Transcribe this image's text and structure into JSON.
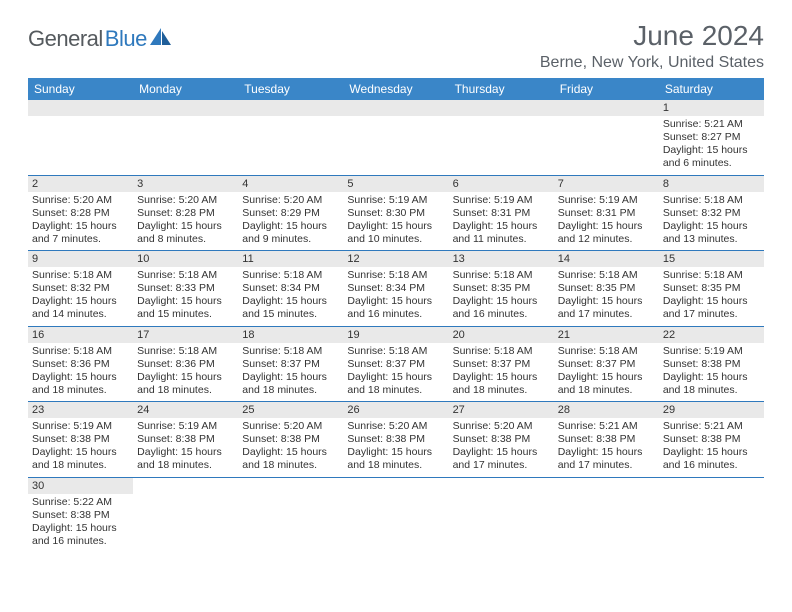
{
  "logo": {
    "general": "General",
    "blue": "Blue"
  },
  "title": "June 2024",
  "location": "Berne, New York, United States",
  "colors": {
    "header_bg": "#3a86c8",
    "header_text": "#ffffff",
    "daynum_bg": "#e9e9e9",
    "cell_border": "#2f79bd",
    "title_color": "#5b6168",
    "logo_gray": "#555a5e",
    "logo_blue": "#2f79bd",
    "page_bg": "#ffffff",
    "text_color": "#333333"
  },
  "weekdays": [
    "Sunday",
    "Monday",
    "Tuesday",
    "Wednesday",
    "Thursday",
    "Friday",
    "Saturday"
  ],
  "weeks": [
    [
      null,
      null,
      null,
      null,
      null,
      null,
      {
        "n": "1",
        "sr": "Sunrise: 5:21 AM",
        "ss": "Sunset: 8:27 PM",
        "d1": "Daylight: 15 hours",
        "d2": "and 6 minutes."
      }
    ],
    [
      {
        "n": "2",
        "sr": "Sunrise: 5:20 AM",
        "ss": "Sunset: 8:28 PM",
        "d1": "Daylight: 15 hours",
        "d2": "and 7 minutes."
      },
      {
        "n": "3",
        "sr": "Sunrise: 5:20 AM",
        "ss": "Sunset: 8:28 PM",
        "d1": "Daylight: 15 hours",
        "d2": "and 8 minutes."
      },
      {
        "n": "4",
        "sr": "Sunrise: 5:20 AM",
        "ss": "Sunset: 8:29 PM",
        "d1": "Daylight: 15 hours",
        "d2": "and 9 minutes."
      },
      {
        "n": "5",
        "sr": "Sunrise: 5:19 AM",
        "ss": "Sunset: 8:30 PM",
        "d1": "Daylight: 15 hours",
        "d2": "and 10 minutes."
      },
      {
        "n": "6",
        "sr": "Sunrise: 5:19 AM",
        "ss": "Sunset: 8:31 PM",
        "d1": "Daylight: 15 hours",
        "d2": "and 11 minutes."
      },
      {
        "n": "7",
        "sr": "Sunrise: 5:19 AM",
        "ss": "Sunset: 8:31 PM",
        "d1": "Daylight: 15 hours",
        "d2": "and 12 minutes."
      },
      {
        "n": "8",
        "sr": "Sunrise: 5:18 AM",
        "ss": "Sunset: 8:32 PM",
        "d1": "Daylight: 15 hours",
        "d2": "and 13 minutes."
      }
    ],
    [
      {
        "n": "9",
        "sr": "Sunrise: 5:18 AM",
        "ss": "Sunset: 8:32 PM",
        "d1": "Daylight: 15 hours",
        "d2": "and 14 minutes."
      },
      {
        "n": "10",
        "sr": "Sunrise: 5:18 AM",
        "ss": "Sunset: 8:33 PM",
        "d1": "Daylight: 15 hours",
        "d2": "and 15 minutes."
      },
      {
        "n": "11",
        "sr": "Sunrise: 5:18 AM",
        "ss": "Sunset: 8:34 PM",
        "d1": "Daylight: 15 hours",
        "d2": "and 15 minutes."
      },
      {
        "n": "12",
        "sr": "Sunrise: 5:18 AM",
        "ss": "Sunset: 8:34 PM",
        "d1": "Daylight: 15 hours",
        "d2": "and 16 minutes."
      },
      {
        "n": "13",
        "sr": "Sunrise: 5:18 AM",
        "ss": "Sunset: 8:35 PM",
        "d1": "Daylight: 15 hours",
        "d2": "and 16 minutes."
      },
      {
        "n": "14",
        "sr": "Sunrise: 5:18 AM",
        "ss": "Sunset: 8:35 PM",
        "d1": "Daylight: 15 hours",
        "d2": "and 17 minutes."
      },
      {
        "n": "15",
        "sr": "Sunrise: 5:18 AM",
        "ss": "Sunset: 8:35 PM",
        "d1": "Daylight: 15 hours",
        "d2": "and 17 minutes."
      }
    ],
    [
      {
        "n": "16",
        "sr": "Sunrise: 5:18 AM",
        "ss": "Sunset: 8:36 PM",
        "d1": "Daylight: 15 hours",
        "d2": "and 18 minutes."
      },
      {
        "n": "17",
        "sr": "Sunrise: 5:18 AM",
        "ss": "Sunset: 8:36 PM",
        "d1": "Daylight: 15 hours",
        "d2": "and 18 minutes."
      },
      {
        "n": "18",
        "sr": "Sunrise: 5:18 AM",
        "ss": "Sunset: 8:37 PM",
        "d1": "Daylight: 15 hours",
        "d2": "and 18 minutes."
      },
      {
        "n": "19",
        "sr": "Sunrise: 5:18 AM",
        "ss": "Sunset: 8:37 PM",
        "d1": "Daylight: 15 hours",
        "d2": "and 18 minutes."
      },
      {
        "n": "20",
        "sr": "Sunrise: 5:18 AM",
        "ss": "Sunset: 8:37 PM",
        "d1": "Daylight: 15 hours",
        "d2": "and 18 minutes."
      },
      {
        "n": "21",
        "sr": "Sunrise: 5:18 AM",
        "ss": "Sunset: 8:37 PM",
        "d1": "Daylight: 15 hours",
        "d2": "and 18 minutes."
      },
      {
        "n": "22",
        "sr": "Sunrise: 5:19 AM",
        "ss": "Sunset: 8:38 PM",
        "d1": "Daylight: 15 hours",
        "d2": "and 18 minutes."
      }
    ],
    [
      {
        "n": "23",
        "sr": "Sunrise: 5:19 AM",
        "ss": "Sunset: 8:38 PM",
        "d1": "Daylight: 15 hours",
        "d2": "and 18 minutes."
      },
      {
        "n": "24",
        "sr": "Sunrise: 5:19 AM",
        "ss": "Sunset: 8:38 PM",
        "d1": "Daylight: 15 hours",
        "d2": "and 18 minutes."
      },
      {
        "n": "25",
        "sr": "Sunrise: 5:20 AM",
        "ss": "Sunset: 8:38 PM",
        "d1": "Daylight: 15 hours",
        "d2": "and 18 minutes."
      },
      {
        "n": "26",
        "sr": "Sunrise: 5:20 AM",
        "ss": "Sunset: 8:38 PM",
        "d1": "Daylight: 15 hours",
        "d2": "and 18 minutes."
      },
      {
        "n": "27",
        "sr": "Sunrise: 5:20 AM",
        "ss": "Sunset: 8:38 PM",
        "d1": "Daylight: 15 hours",
        "d2": "and 17 minutes."
      },
      {
        "n": "28",
        "sr": "Sunrise: 5:21 AM",
        "ss": "Sunset: 8:38 PM",
        "d1": "Daylight: 15 hours",
        "d2": "and 17 minutes."
      },
      {
        "n": "29",
        "sr": "Sunrise: 5:21 AM",
        "ss": "Sunset: 8:38 PM",
        "d1": "Daylight: 15 hours",
        "d2": "and 16 minutes."
      }
    ],
    [
      {
        "n": "30",
        "sr": "Sunrise: 5:22 AM",
        "ss": "Sunset: 8:38 PM",
        "d1": "Daylight: 15 hours",
        "d2": "and 16 minutes."
      },
      null,
      null,
      null,
      null,
      null,
      null
    ]
  ]
}
